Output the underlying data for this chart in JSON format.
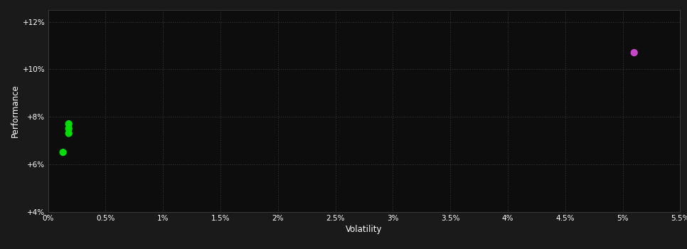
{
  "background_color": "#1a1a1a",
  "plot_bg_color": "#0d0d0d",
  "grid_color": "#3a3a3a",
  "text_color": "#ffffff",
  "xlabel": "Volatility",
  "ylabel": "Performance",
  "xlim": [
    0,
    0.055
  ],
  "ylim": [
    0.04,
    0.125
  ],
  "xticks": [
    0.0,
    0.005,
    0.01,
    0.015,
    0.02,
    0.025,
    0.03,
    0.035,
    0.04,
    0.045,
    0.05,
    0.055
  ],
  "xtick_labels": [
    "0%",
    "0.5%",
    "1%",
    "1.5%",
    "2%",
    "2.5%",
    "3%",
    "3.5%",
    "4%",
    "4.5%",
    "5%",
    "5.5%"
  ],
  "yticks": [
    0.04,
    0.06,
    0.08,
    0.1,
    0.12
  ],
  "ytick_labels": [
    "+4%",
    "+6%",
    "+8%",
    "+10%",
    "+12%"
  ],
  "green_points": [
    [
      0.0018,
      0.077
    ],
    [
      0.0018,
      0.075
    ],
    [
      0.0018,
      0.073
    ],
    [
      0.0013,
      0.065
    ]
  ],
  "magenta_points": [
    [
      0.051,
      0.107
    ]
  ],
  "green_color": "#00dd00",
  "magenta_color": "#cc44cc",
  "marker_size": 55
}
